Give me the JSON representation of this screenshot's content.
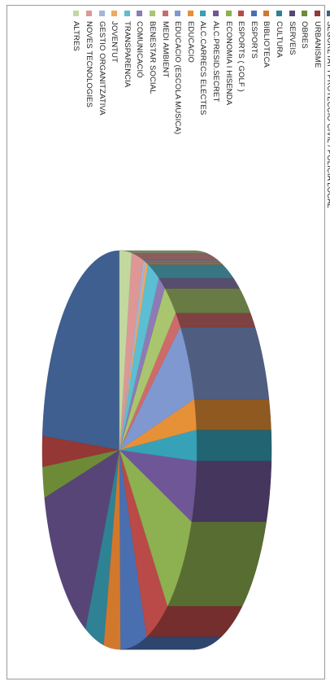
{
  "chart_data": {
    "type": "pie",
    "title": "",
    "legend_position": "right",
    "categories": [
      "SEGURETAT I PROTECCIO CIVIL / POLICIA LOCAL",
      "URBANISME",
      "OBRES",
      "SERVEIS",
      "CULTURA",
      "BIBLIOTECA",
      "ESPORTS",
      "ESPORTS ( GOLF )",
      "ECONOMIA I HISENDA",
      "ALC.PRESID.SECRET",
      "ALC.CARRECS ELECTES",
      "EDUCACIO",
      "EDUCACIO (ESCOLA MUSICA)",
      "MEDI AMBIENT",
      "BENESTAR SOCIAL",
      "COMUNICACIÓ",
      "TRANSPARENCIA",
      "JOVENTUT",
      "GESTIO ORGANITZATIVA",
      "NOVES TECNOLOGIES",
      "ALTRES"
    ],
    "values": [
      24.0,
      2.5,
      2.5,
      14.0,
      4.0,
      3.5,
      5.5,
      5.0,
      8.5,
      5.0,
      2.5,
      2.5,
      6.5,
      1.5,
      3.0,
      1.5,
      2.5,
      0.5,
      0.5,
      2.5,
      2.5
    ],
    "colors": [
      "#3E5F8F",
      "#953735",
      "#6D8B37",
      "#584577",
      "#2F8293",
      "#D2782D",
      "#4A6FB0",
      "#B94A48",
      "#8DB050",
      "#6F5797",
      "#37A1B8",
      "#E69137",
      "#7F98CF",
      "#CD6B6A",
      "#A9C66E",
      "#8E7BB3",
      "#5CBED3",
      "#F0A95F",
      "#A3B6DB",
      "#DD9896",
      "#C3D89F"
    ]
  }
}
